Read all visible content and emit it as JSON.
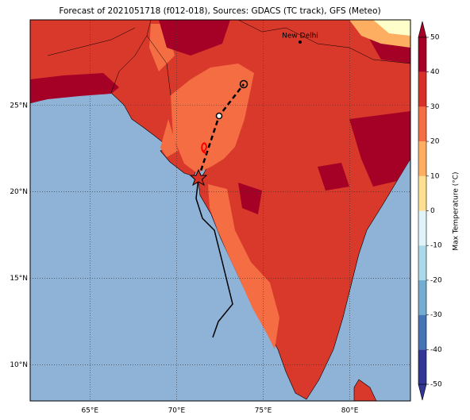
{
  "title": "Forecast of 2021051718 (f012-018), Sources: GDACS (TC track), GFS (Meteo)",
  "map": {
    "lon_lim": [
      61.55,
      83.5
    ],
    "lat_lim": [
      7.9,
      29.95
    ],
    "lon_ticks": [
      {
        "value": 65,
        "label": "65°E"
      },
      {
        "value": 70,
        "label": "70°E"
      },
      {
        "value": 75,
        "label": "75°E"
      },
      {
        "value": 80,
        "label": "80°E"
      }
    ],
    "lat_ticks": [
      {
        "value": 10,
        "label": "10°N"
      },
      {
        "value": 15,
        "label": "15°N"
      },
      {
        "value": 20,
        "label": "20°N"
      },
      {
        "value": 25,
        "label": "25°N"
      }
    ],
    "cities": [
      "New Delhi"
    ]
  },
  "colorbar": {
    "label": "Max Temperature (°C)",
    "ticks": [
      -50,
      -40,
      -30,
      -20,
      -10,
      0,
      10,
      20,
      30,
      40,
      50
    ],
    "colors": [
      "#313695",
      "#4575b4",
      "#74add1",
      "#abd9e9",
      "#e0f3f8",
      "#fefecb",
      "#fee090",
      "#fdae61",
      "#f46d43",
      "#d73027",
      "#a50026"
    ]
  }
}
